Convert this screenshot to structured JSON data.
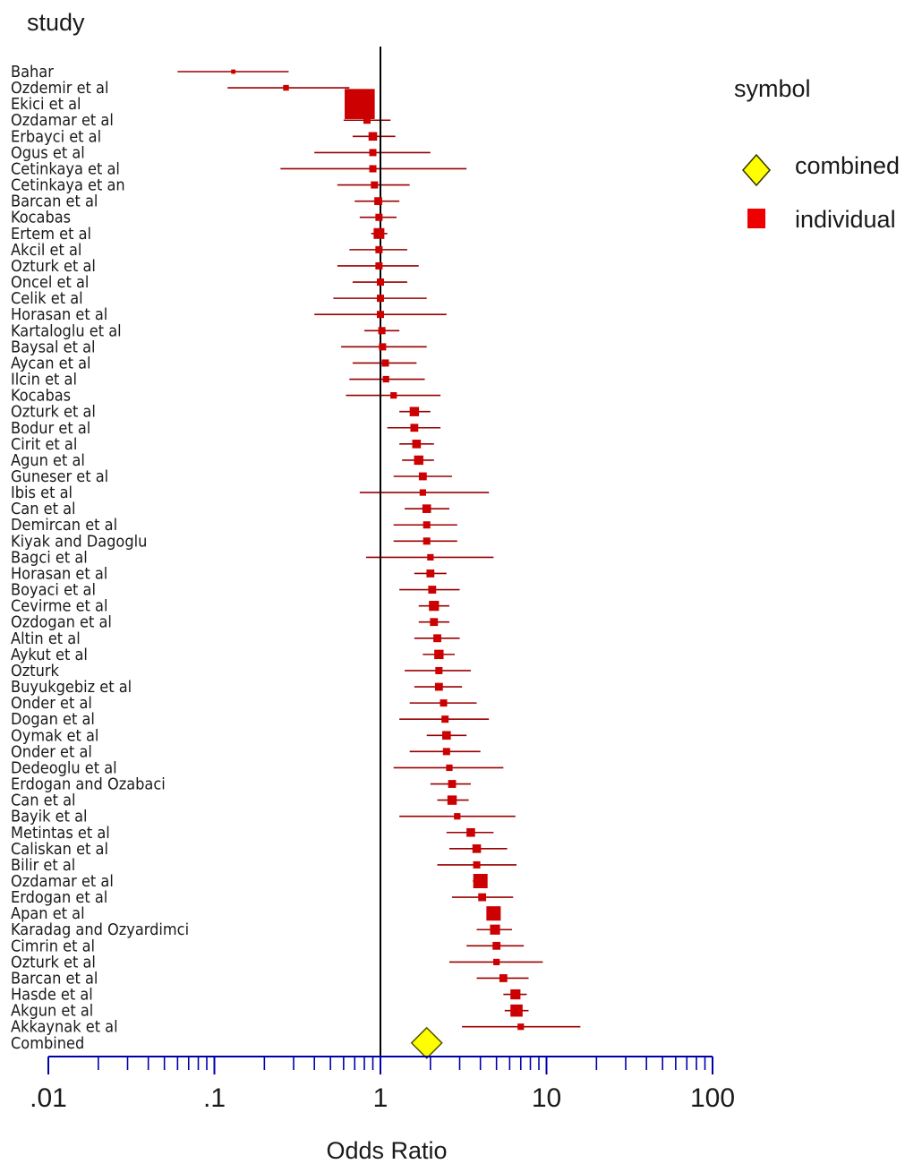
{
  "chart_data": {
    "type": "forest",
    "title": "study",
    "xlabel": "Odds Ratio",
    "x_scale": "log",
    "xlim": [
      0.01,
      100
    ],
    "x_ticks": [
      {
        "value": 0.01,
        "label": ".01"
      },
      {
        "value": 0.1,
        "label": ".1"
      },
      {
        "value": 1,
        "label": "1"
      },
      {
        "value": 10,
        "label": "10"
      },
      {
        "value": 100,
        "label": "100"
      }
    ],
    "reference_line": 1,
    "legend": {
      "title": "symbol",
      "position": "top-right",
      "items": [
        {
          "label": "combined",
          "shape": "diamond",
          "color": "#ffff00"
        },
        {
          "label": "individual",
          "shape": "square",
          "color": "#ee0000"
        }
      ]
    },
    "colors": {
      "study": "#cc0000",
      "study_ci": "#990000",
      "combined": "#ffff00",
      "axis": "#0000aa"
    },
    "studies": [
      {
        "name": "Bahar",
        "or": 0.13,
        "lo": 0.06,
        "hi": 0.28,
        "weight": 0.6
      },
      {
        "name": "Ozdemir et al",
        "or": 0.27,
        "lo": 0.12,
        "hi": 0.65,
        "weight": 0.8
      },
      {
        "name": "Ekici et al",
        "or": 0.75,
        "lo": 0.68,
        "hi": 0.82,
        "weight": 4.2
      },
      {
        "name": "Ozdamar et al",
        "or": 0.83,
        "lo": 0.6,
        "hi": 1.15,
        "weight": 1.0
      },
      {
        "name": "Erbayci et al",
        "or": 0.9,
        "lo": 0.68,
        "hi": 1.23,
        "weight": 1.2
      },
      {
        "name": "Ogus et al",
        "or": 0.9,
        "lo": 0.4,
        "hi": 2.0,
        "weight": 1.0
      },
      {
        "name": "Cetinkaya et al",
        "or": 0.9,
        "lo": 0.25,
        "hi": 3.3,
        "weight": 1.0
      },
      {
        "name": "Cetinkaya et an",
        "or": 0.92,
        "lo": 0.55,
        "hi": 1.5,
        "weight": 1.0
      },
      {
        "name": "Barcan et al",
        "or": 0.97,
        "lo": 0.7,
        "hi": 1.3,
        "weight": 1.1
      },
      {
        "name": "Kocabas",
        "or": 0.98,
        "lo": 0.75,
        "hi": 1.25,
        "weight": 1.0
      },
      {
        "name": "Ertem et al",
        "or": 0.98,
        "lo": 0.88,
        "hi": 1.1,
        "weight": 1.5
      },
      {
        "name": "Akcil et al",
        "or": 0.98,
        "lo": 0.65,
        "hi": 1.45,
        "weight": 1.0
      },
      {
        "name": "Ozturk et al",
        "or": 0.98,
        "lo": 0.55,
        "hi": 1.7,
        "weight": 1.0
      },
      {
        "name": "Oncel et al",
        "or": 1.0,
        "lo": 0.68,
        "hi": 1.45,
        "weight": 1.0
      },
      {
        "name": "Celik et al",
        "or": 1.0,
        "lo": 0.52,
        "hi": 1.9,
        "weight": 1.0
      },
      {
        "name": "Horasan et al",
        "or": 1.0,
        "lo": 0.4,
        "hi": 2.5,
        "weight": 1.0
      },
      {
        "name": "Kartaloglu et al",
        "or": 1.02,
        "lo": 0.8,
        "hi": 1.3,
        "weight": 1.0
      },
      {
        "name": "Baysal et al",
        "or": 1.03,
        "lo": 0.58,
        "hi": 1.9,
        "weight": 1.0
      },
      {
        "name": "Aycan et al",
        "or": 1.07,
        "lo": 0.68,
        "hi": 1.65,
        "weight": 1.0
      },
      {
        "name": "Ilcin et al",
        "or": 1.08,
        "lo": 0.65,
        "hi": 1.85,
        "weight": 0.9
      },
      {
        "name": "Kocabas",
        "or": 1.2,
        "lo": 0.62,
        "hi": 2.3,
        "weight": 0.9
      },
      {
        "name": "Ozturk et al",
        "or": 1.6,
        "lo": 1.3,
        "hi": 2.0,
        "weight": 1.3
      },
      {
        "name": "Bodur et al",
        "or": 1.6,
        "lo": 1.1,
        "hi": 2.3,
        "weight": 1.1
      },
      {
        "name": "Cirit et al",
        "or": 1.65,
        "lo": 1.3,
        "hi": 2.1,
        "weight": 1.2
      },
      {
        "name": "Agun et al",
        "or": 1.7,
        "lo": 1.35,
        "hi": 2.1,
        "weight": 1.3
      },
      {
        "name": "Guneser et al",
        "or": 1.8,
        "lo": 1.2,
        "hi": 2.7,
        "weight": 1.1
      },
      {
        "name": "Ibis et al",
        "or": 1.8,
        "lo": 0.75,
        "hi": 4.5,
        "weight": 0.9
      },
      {
        "name": "Can et al",
        "or": 1.9,
        "lo": 1.4,
        "hi": 2.6,
        "weight": 1.2
      },
      {
        "name": "Demircan et al",
        "or": 1.9,
        "lo": 1.2,
        "hi": 2.9,
        "weight": 1.0
      },
      {
        "name": "Kiyak and Dagoglu",
        "or": 1.9,
        "lo": 1.2,
        "hi": 2.9,
        "weight": 1.0
      },
      {
        "name": "Bagci et al",
        "or": 2.0,
        "lo": 0.82,
        "hi": 4.8,
        "weight": 0.9
      },
      {
        "name": "Horasan et al",
        "or": 2.0,
        "lo": 1.6,
        "hi": 2.5,
        "weight": 1.1
      },
      {
        "name": "Boyaci et al",
        "or": 2.05,
        "lo": 1.3,
        "hi": 3.0,
        "weight": 1.1
      },
      {
        "name": "Cevirme et al",
        "or": 2.1,
        "lo": 1.7,
        "hi": 2.6,
        "weight": 1.4
      },
      {
        "name": "Ozdogan et al",
        "or": 2.1,
        "lo": 1.7,
        "hi": 2.6,
        "weight": 1.1
      },
      {
        "name": "Altin et al",
        "or": 2.2,
        "lo": 1.6,
        "hi": 3.0,
        "weight": 1.1
      },
      {
        "name": "Aykut et al",
        "or": 2.25,
        "lo": 1.8,
        "hi": 2.8,
        "weight": 1.3
      },
      {
        "name": "Ozturk",
        "or": 2.25,
        "lo": 1.4,
        "hi": 3.5,
        "weight": 1.0
      },
      {
        "name": "Buyukgebiz et al",
        "or": 2.25,
        "lo": 1.6,
        "hi": 3.1,
        "weight": 1.1
      },
      {
        "name": "Onder et al",
        "or": 2.4,
        "lo": 1.5,
        "hi": 3.8,
        "weight": 1.0
      },
      {
        "name": "Dogan et al",
        "or": 2.45,
        "lo": 1.3,
        "hi": 4.5,
        "weight": 1.0
      },
      {
        "name": "Oymak et al",
        "or": 2.5,
        "lo": 1.9,
        "hi": 3.3,
        "weight": 1.2
      },
      {
        "name": "Onder et al",
        "or": 2.5,
        "lo": 1.5,
        "hi": 4.0,
        "weight": 1.0
      },
      {
        "name": "Dedeoglu et al",
        "or": 2.6,
        "lo": 1.2,
        "hi": 5.5,
        "weight": 0.9
      },
      {
        "name": "Erdogan and Ozabaci",
        "or": 2.7,
        "lo": 2.0,
        "hi": 3.5,
        "weight": 1.1
      },
      {
        "name": "Can et al",
        "or": 2.7,
        "lo": 2.2,
        "hi": 3.4,
        "weight": 1.3
      },
      {
        "name": "Bayik et al",
        "or": 2.9,
        "lo": 1.3,
        "hi": 6.5,
        "weight": 0.9
      },
      {
        "name": "Metintas et al",
        "or": 3.5,
        "lo": 2.5,
        "hi": 4.8,
        "weight": 1.2
      },
      {
        "name": "Caliskan et al",
        "or": 3.8,
        "lo": 2.6,
        "hi": 5.8,
        "weight": 1.2
      },
      {
        "name": "Bilir et al",
        "or": 3.8,
        "lo": 2.2,
        "hi": 6.6,
        "weight": 1.0
      },
      {
        "name": "Ozdamar et al",
        "or": 4.0,
        "lo": 3.6,
        "hi": 4.4,
        "weight": 2.0
      },
      {
        "name": "Erdogan et al",
        "or": 4.1,
        "lo": 2.7,
        "hi": 6.3,
        "weight": 1.1
      },
      {
        "name": "Apan et al",
        "or": 4.8,
        "lo": 4.4,
        "hi": 5.2,
        "weight": 2.0
      },
      {
        "name": "Karadag and Ozyardimci",
        "or": 4.9,
        "lo": 3.8,
        "hi": 6.2,
        "weight": 1.4
      },
      {
        "name": "Cimrin et al",
        "or": 5.0,
        "lo": 3.3,
        "hi": 7.3,
        "weight": 1.1
      },
      {
        "name": "Ozturk et al",
        "or": 5.0,
        "lo": 2.6,
        "hi": 9.5,
        "weight": 0.9
      },
      {
        "name": "Barcan et al",
        "or": 5.5,
        "lo": 3.8,
        "hi": 7.8,
        "weight": 1.1
      },
      {
        "name": "Hasde et al",
        "or": 6.5,
        "lo": 5.5,
        "hi": 7.6,
        "weight": 1.4
      },
      {
        "name": "Akgun et al",
        "or": 6.6,
        "lo": 5.6,
        "hi": 7.8,
        "weight": 1.7
      },
      {
        "name": "Akkaynak et al",
        "or": 7.0,
        "lo": 3.1,
        "hi": 16.0,
        "weight": 0.9
      }
    ],
    "combined": {
      "name": "Combined",
      "or": 1.9,
      "lo": 1.7,
      "hi": 2.1
    }
  }
}
